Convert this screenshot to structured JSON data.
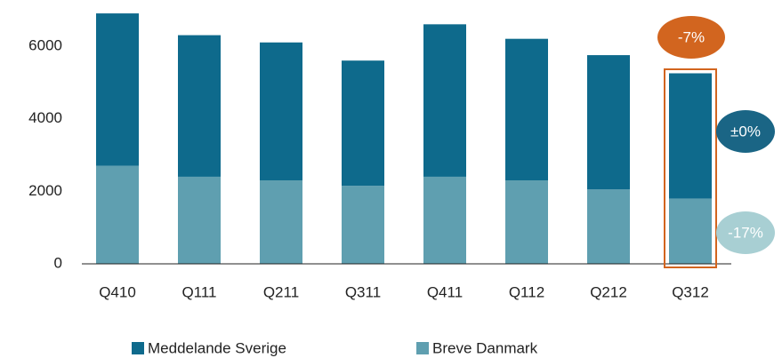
{
  "chart_data": {
    "type": "bar",
    "stacked": true,
    "categories": [
      "Q410",
      "Q111",
      "Q211",
      "Q311",
      "Q411",
      "Q112",
      "Q212",
      "Q312"
    ],
    "series": [
      {
        "name": "Breve Danmark",
        "color": "#5f9fb0",
        "values": [
          2700,
          2400,
          2300,
          2150,
          2400,
          2300,
          2050,
          1800
        ]
      },
      {
        "name": "Meddelande Sverige",
        "color": "#0e6a8c",
        "values": [
          4200,
          3900,
          3800,
          3450,
          4200,
          3900,
          3700,
          3450
        ]
      }
    ],
    "ylim": [
      0,
      7000
    ],
    "yticks": [
      0,
      2000,
      4000,
      6000
    ],
    "grid": false,
    "annotations": [
      {
        "text": "-7%",
        "color": "#d2651f"
      },
      {
        "text": "±0%",
        "color": "#1a6585"
      },
      {
        "text": "-17%",
        "color": "#a8cfd3"
      }
    ],
    "highlight_color": "#d2651f"
  }
}
